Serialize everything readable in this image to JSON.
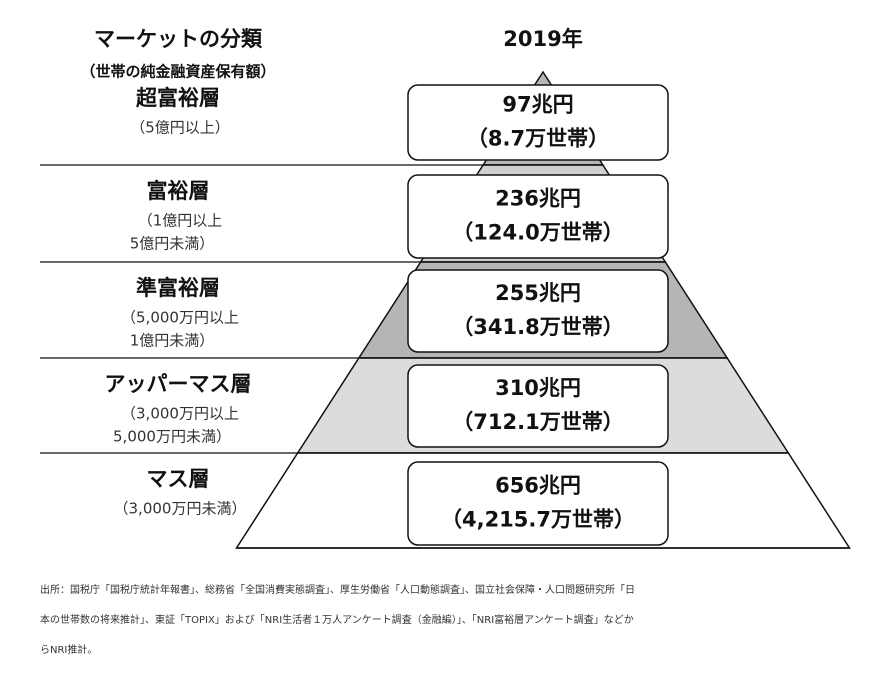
{
  "header": {
    "title": "マーケットの分類",
    "subtitle": "（世帯の純金融資産保有額）",
    "year": "2019年"
  },
  "rows": [
    {
      "name": "超富裕層",
      "range": [
        "（5億円以上）"
      ],
      "amount": "97兆円",
      "households": "（8.7万世帯）"
    },
    {
      "name": "富裕層",
      "range": [
        "（1億円以上",
        "5億円未満）"
      ],
      "amount": "236兆円",
      "households": "（124.0万世帯）"
    },
    {
      "name": "準富裕層",
      "range": [
        "（5,000万円以上",
        "1億円未満）"
      ],
      "amount": "255兆円",
      "households": "（341.8万世帯）"
    },
    {
      "name": "アッパーマス層",
      "range": [
        "（3,000万円以上",
        "5,000万円未満）"
      ],
      "amount": "310兆円",
      "households": "（712.1万世帯）"
    },
    {
      "name": "マス層",
      "range": [
        "（3,000万円未満）"
      ],
      "amount": "656兆円",
      "households": "（4,215.7万世帯）"
    }
  ],
  "footnote": [
    "出所：国税庁「国税庁統計年報書」、総務省「全国消費実態調査」、厚生労働省「人口動態調査」、国立社会保障・人口問題研究所「日",
    "本の世帯数の将来推計」、東証「TOPIX」および「NRI生活者１万人アンケート調査（金融編）」、「NRI富裕層アンケート調査」などか",
    "らNRI推計。"
  ]
}
